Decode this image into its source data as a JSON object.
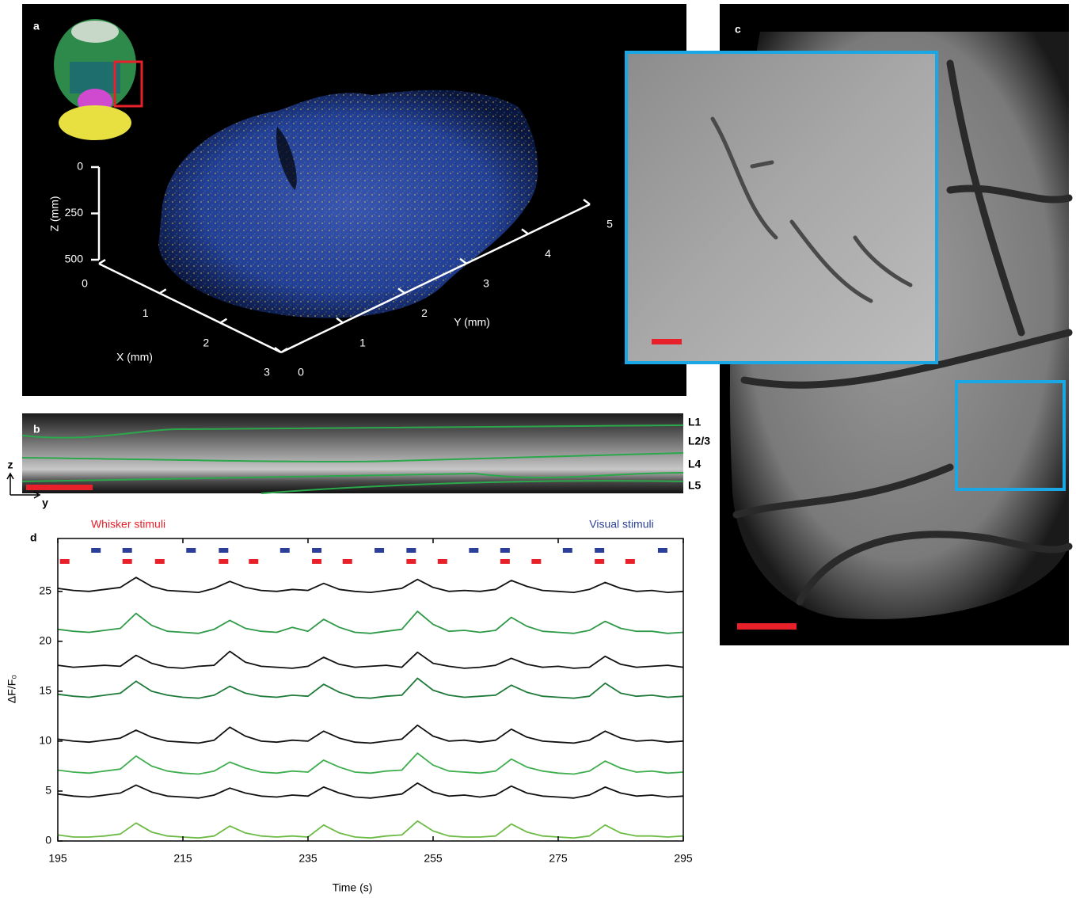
{
  "chart_data": [
    {
      "type": "scatter3d",
      "panel": "a",
      "xlabel": "X (mm)",
      "ylabel": "Y (mm)",
      "zlabel": "Z (mm)",
      "xlim": [
        0,
        3
      ],
      "ylim": [
        0,
        5
      ],
      "zlim": [
        0,
        500
      ],
      "xticks": [
        0,
        1,
        2,
        3
      ],
      "yticks": [
        0,
        1,
        2,
        3,
        4,
        5
      ],
      "zticks": [
        0,
        250,
        500
      ]
    },
    {
      "type": "line",
      "panel": "d",
      "xlabel": "Time (s)",
      "ylabel": "ΔF/F₀",
      "xlim": [
        195,
        295
      ],
      "ylim": [
        0,
        30.3
      ],
      "xticks": [
        195,
        215,
        235,
        255,
        275,
        295
      ],
      "yticks": [
        0,
        5,
        10,
        15,
        20,
        25
      ],
      "stimuli": [
        {
          "name": "Whisker stimuli",
          "color": "#e8202a",
          "times": [
            196.1,
            206.1,
            211.3,
            221.5,
            226.3,
            236.4,
            241.3,
            251.5,
            256.5,
            266.5,
            271.5,
            281.6,
            286.5
          ]
        },
        {
          "name": "Visual stimuli",
          "color": "#2b3f99",
          "times": [
            201.1,
            206.1,
            216.3,
            221.5,
            231.3,
            236.4,
            246.4,
            251.5,
            261.5,
            266.5,
            276.5,
            281.6,
            291.7
          ]
        }
      ],
      "x": [
        195,
        197.5,
        200,
        202.5,
        205,
        207.5,
        210,
        212.5,
        215,
        217.5,
        220,
        222.5,
        225,
        227.5,
        230,
        232.5,
        235,
        237.5,
        240,
        242.5,
        245,
        247.5,
        250,
        252.5,
        255,
        257.5,
        260,
        262.5,
        265,
        267.5,
        270,
        272.5,
        275,
        277.5,
        280,
        282.5,
        285,
        287.5,
        290,
        292.5,
        295
      ],
      "series": [
        {
          "color": "#111111",
          "values": [
            25.3,
            25.1,
            25.0,
            25.2,
            25.4,
            26.4,
            25.5,
            25.1,
            25.0,
            24.9,
            25.3,
            26.0,
            25.4,
            25.1,
            25.0,
            25.2,
            25.1,
            25.8,
            25.2,
            25.0,
            24.9,
            25.1,
            25.3,
            26.2,
            25.4,
            25.0,
            25.1,
            25.0,
            25.2,
            26.1,
            25.5,
            25.1,
            25.0,
            24.9,
            25.2,
            25.9,
            25.3,
            25.0,
            25.1,
            24.9,
            25.0
          ]
        },
        {
          "color": "#2e9a48",
          "values": [
            21.2,
            21.0,
            20.9,
            21.1,
            21.3,
            22.8,
            21.6,
            21.0,
            20.9,
            20.8,
            21.2,
            22.1,
            21.3,
            21.0,
            20.9,
            21.4,
            21.0,
            22.2,
            21.4,
            20.9,
            20.8,
            21.0,
            21.2,
            23.0,
            21.7,
            21.0,
            21.1,
            20.9,
            21.1,
            22.4,
            21.5,
            21.0,
            20.9,
            20.8,
            21.1,
            22.0,
            21.3,
            21.0,
            21.0,
            20.8,
            20.9
          ]
        },
        {
          "color": "#111111",
          "values": [
            17.6,
            17.4,
            17.5,
            17.6,
            17.5,
            18.6,
            17.8,
            17.4,
            17.3,
            17.5,
            17.6,
            19.0,
            17.9,
            17.5,
            17.4,
            17.3,
            17.5,
            18.4,
            17.7,
            17.4,
            17.5,
            17.6,
            17.4,
            18.9,
            17.8,
            17.5,
            17.3,
            17.4,
            17.6,
            18.3,
            17.7,
            17.4,
            17.5,
            17.3,
            17.4,
            18.5,
            17.7,
            17.4,
            17.5,
            17.6,
            17.4
          ]
        },
        {
          "color": "#1f7a3a",
          "values": [
            14.7,
            14.5,
            14.4,
            14.6,
            14.8,
            16.0,
            15.0,
            14.6,
            14.4,
            14.3,
            14.6,
            15.5,
            14.8,
            14.5,
            14.4,
            14.6,
            14.5,
            15.7,
            14.9,
            14.4,
            14.3,
            14.5,
            14.6,
            16.3,
            15.1,
            14.6,
            14.4,
            14.5,
            14.6,
            15.6,
            14.9,
            14.5,
            14.4,
            14.3,
            14.5,
            15.8,
            14.8,
            14.5,
            14.6,
            14.4,
            14.5
          ]
        },
        {
          "color": "#111111",
          "values": [
            10.2,
            10.0,
            9.9,
            10.1,
            10.3,
            11.1,
            10.4,
            10.0,
            9.9,
            9.8,
            10.1,
            11.4,
            10.5,
            10.0,
            9.9,
            10.1,
            10.0,
            11.0,
            10.3,
            9.9,
            9.8,
            10.0,
            10.2,
            11.6,
            10.5,
            10.0,
            10.1,
            9.9,
            10.1,
            11.2,
            10.4,
            10.0,
            9.9,
            9.8,
            10.1,
            11.0,
            10.3,
            10.0,
            10.1,
            9.9,
            10.0
          ]
        },
        {
          "color": "#3fae4f",
          "values": [
            7.1,
            6.9,
            6.8,
            7.0,
            7.2,
            8.5,
            7.5,
            7.0,
            6.8,
            6.7,
            7.0,
            7.9,
            7.3,
            6.9,
            6.8,
            7.0,
            6.9,
            8.1,
            7.4,
            6.9,
            6.8,
            7.0,
            7.1,
            8.8,
            7.6,
            7.0,
            6.9,
            6.8,
            7.0,
            8.2,
            7.4,
            7.0,
            6.8,
            6.7,
            7.0,
            8.0,
            7.3,
            6.9,
            7.0,
            6.8,
            6.9
          ]
        },
        {
          "color": "#111111",
          "values": [
            4.7,
            4.5,
            4.4,
            4.6,
            4.8,
            5.6,
            4.9,
            4.5,
            4.4,
            4.3,
            4.6,
            5.3,
            4.8,
            4.5,
            4.4,
            4.6,
            4.5,
            5.4,
            4.8,
            4.4,
            4.3,
            4.5,
            4.7,
            5.8,
            4.9,
            4.5,
            4.6,
            4.4,
            4.6,
            5.5,
            4.8,
            4.5,
            4.4,
            4.3,
            4.6,
            5.4,
            4.8,
            4.5,
            4.6,
            4.4,
            4.5
          ]
        },
        {
          "color": "#6dbb45",
          "values": [
            0.6,
            0.4,
            0.4,
            0.5,
            0.7,
            1.8,
            0.9,
            0.5,
            0.4,
            0.3,
            0.5,
            1.5,
            0.8,
            0.5,
            0.4,
            0.5,
            0.4,
            1.6,
            0.8,
            0.4,
            0.3,
            0.5,
            0.6,
            2.0,
            1.0,
            0.5,
            0.4,
            0.4,
            0.5,
            1.7,
            0.9,
            0.5,
            0.4,
            0.3,
            0.5,
            1.6,
            0.8,
            0.5,
            0.5,
            0.4,
            0.5
          ]
        }
      ]
    }
  ],
  "images": [
    {
      "panel": "b",
      "layers": [
        "L1",
        "L2/3",
        "L4",
        "L5"
      ],
      "axis_labels": [
        "z",
        "y"
      ]
    },
    {
      "panel": "c"
    }
  ]
}
